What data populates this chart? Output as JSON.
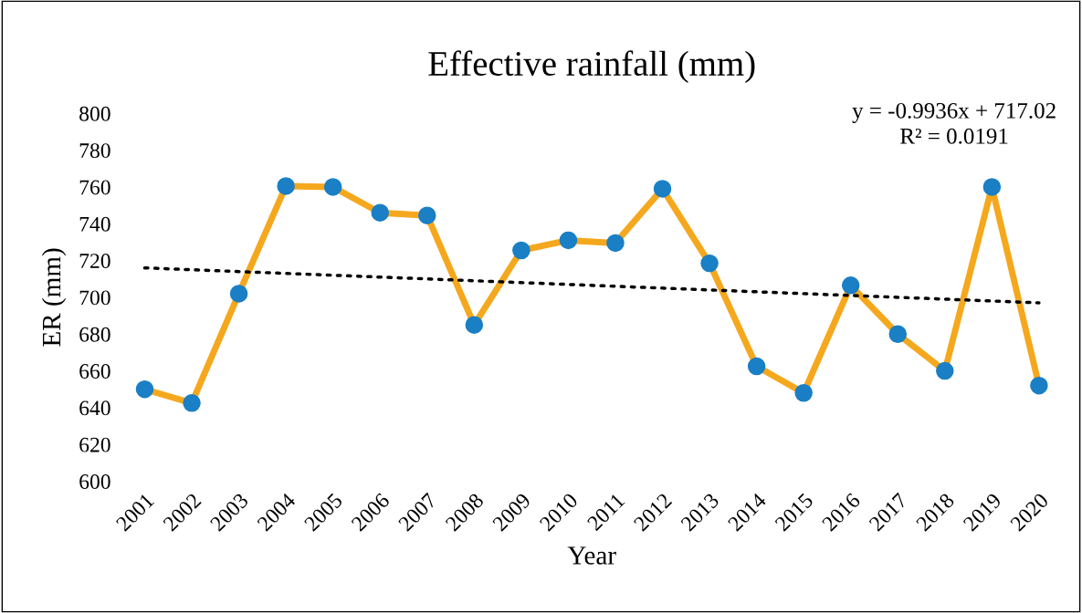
{
  "chart_data": {
    "type": "line",
    "title": "Effective rainfall (mm)",
    "xlabel": "Year",
    "ylabel": "ER (mm)",
    "categories": [
      "2001",
      "2002",
      "2003",
      "2004",
      "2005",
      "2006",
      "2007",
      "2008",
      "2009",
      "2010",
      "2011",
      "2012",
      "2013",
      "2014",
      "2015",
      "2016",
      "2017",
      "2018",
      "2019",
      "2020"
    ],
    "series": [
      {
        "color": "#f5a81d",
        "colors": [
          "#1a7fc4",
          "#1a7fc4",
          "#1a7fc4",
          "#1a7fc4",
          "#1a7fc4",
          "#1a7fc4",
          "#1a7fc4",
          "#1a7fc4",
          "#1a7fc4",
          "#1a7fc4",
          "#1a7fc4",
          "#1a7fc4",
          "#1a7fc4",
          "#1a7fc4",
          "#1a7fc4",
          "#1a7fc4",
          "#1a7fc4",
          "#1a7fc4",
          "#1a7fc4",
          "#1a7fc4"
        ],
        "marker": "circle",
        "line_style": "solid",
        "values": [
          650,
          642.5,
          702,
          760.5,
          760,
          746,
          744.5,
          685,
          725.5,
          731,
          729.5,
          759,
          718.5,
          662.5,
          648,
          706.5,
          680,
          660,
          760,
          652
        ]
      },
      {
        "type": "line",
        "color": "#000000",
        "marker": "none",
        "line_style": "dotted",
        "values": [
          716,
          715,
          714,
          713,
          712,
          711,
          710,
          709,
          708,
          707,
          706,
          705,
          704,
          703,
          702,
          701,
          700,
          699,
          698,
          697
        ]
      }
    ],
    "ylim": [
      600,
      800
    ],
    "yticks": [
      600,
      620,
      640,
      660,
      680,
      700,
      720,
      740,
      760,
      780,
      800
    ],
    "grid": false,
    "annotations": [
      "y = -0.9936x + 717.02\nR² = 0.0191"
    ]
  }
}
